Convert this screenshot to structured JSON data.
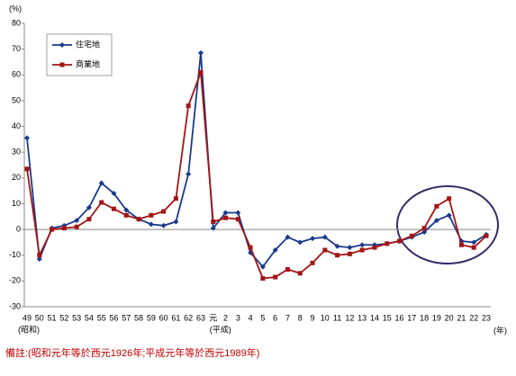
{
  "chart_data": {
    "type": "line",
    "y_unit": "(%)",
    "x_unit": "(年)",
    "era_labels": [
      "(昭和)",
      "(平成)"
    ],
    "note": "備註:(昭和元年等於西元1926年;平成元年等於西元1989年)",
    "categories": [
      "49",
      "50",
      "51",
      "52",
      "53",
      "54",
      "55",
      "56",
      "57",
      "58",
      "59",
      "60",
      "61",
      "62",
      "63",
      "元",
      "2",
      "3",
      "4",
      "5",
      "6",
      "7",
      "8",
      "9",
      "10",
      "11",
      "12",
      "13",
      "14",
      "15",
      "16",
      "17",
      "18",
      "19",
      "20",
      "21",
      "22",
      "23"
    ],
    "series": [
      {
        "name": "住宅地",
        "color": "#1a3a8c",
        "marker": "diamond",
        "values": [
          35.5,
          -11.5,
          0.5,
          1.5,
          3.5,
          8.5,
          18,
          14,
          7.5,
          4,
          2,
          1.5,
          3,
          21.5,
          68.5,
          0.5,
          6.5,
          6.5,
          -9,
          -14.5,
          -8,
          -3,
          -5,
          -3.5,
          -3,
          -6.5,
          -7,
          -6,
          -6,
          -5.5,
          -4.5,
          -3,
          -1,
          3.5,
          5.5,
          -4.5,
          -5,
          -2
        ]
      },
      {
        "name": "商業地",
        "color": "#a31515",
        "marker": "square",
        "values": [
          23.5,
          -10,
          0,
          0.5,
          1,
          4,
          10.5,
          8,
          5.5,
          4,
          5.5,
          7,
          12,
          48,
          61,
          3,
          4.5,
          4,
          -7,
          -19,
          -18.5,
          -15.5,
          -17,
          -13,
          -8,
          -10,
          -9.5,
          -8,
          -7,
          -5.5,
          -4.5,
          -2.5,
          0.5,
          9,
          12,
          -6,
          -7,
          -2.5
        ]
      }
    ],
    "ylim": [
      -30,
      80
    ],
    "yticks": [
      -30,
      -20,
      -10,
      0,
      10,
      20,
      30,
      40,
      50,
      60,
      70,
      80
    ],
    "grid": false
  }
}
